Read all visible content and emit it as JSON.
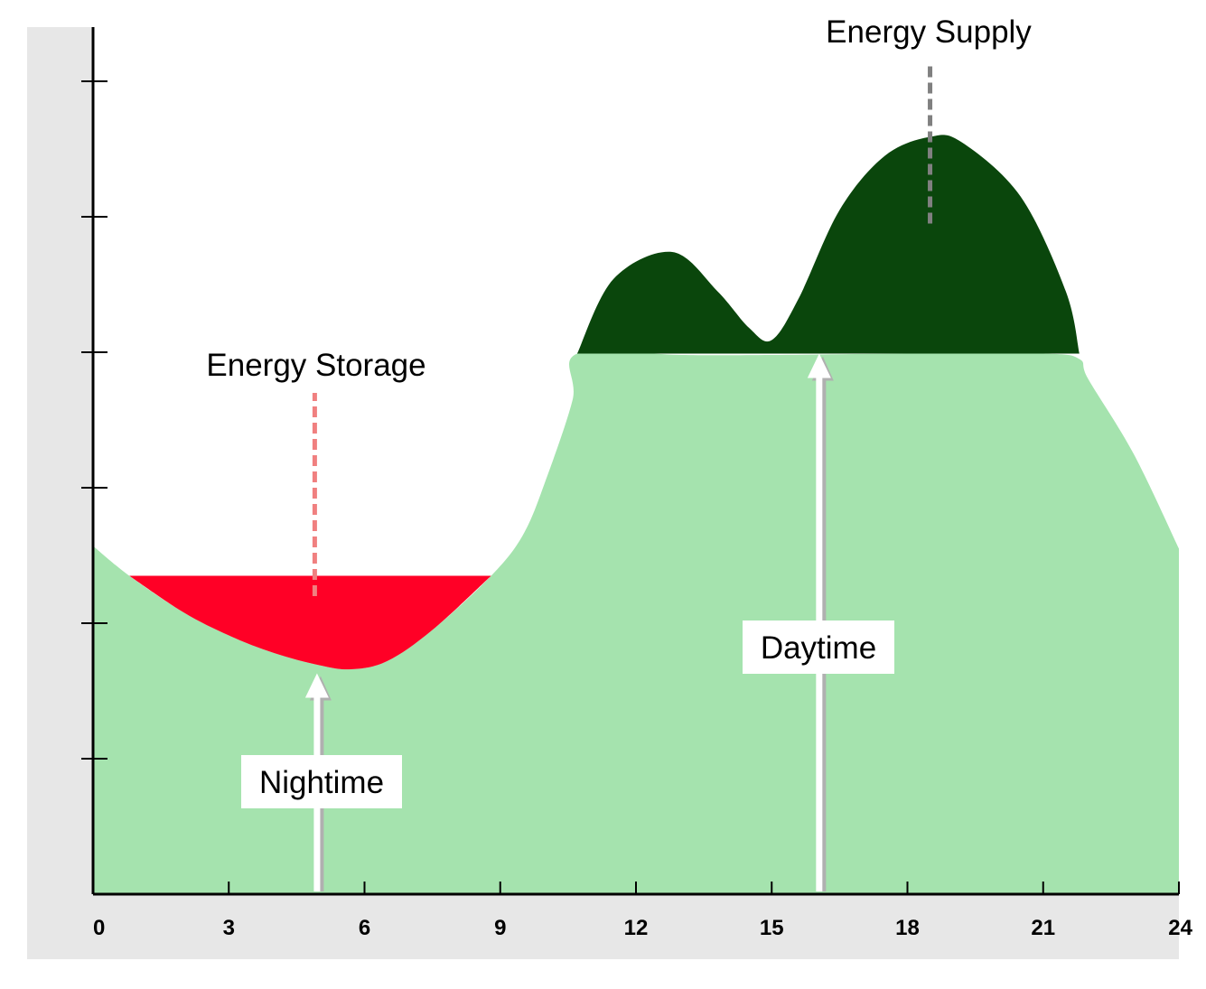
{
  "chart_data": {
    "type": "area",
    "title": "",
    "xlabel": "",
    "ylabel": "",
    "x_ticks": [
      0,
      3,
      6,
      9,
      12,
      15,
      18,
      21,
      24
    ],
    "xlim": [
      0,
      24
    ],
    "y_tick_count": 6,
    "y_tick_labels": [],
    "ylim": [
      0,
      6.4
    ],
    "grid": false,
    "series": [
      {
        "color": "#a5e3ae",
        "x": [
          0,
          0.8,
          2,
          3,
          4,
          5,
          5.7,
          6.5,
          7.5,
          8.8,
          9.5,
          10,
          10.6,
          10.7,
          13,
          15,
          18,
          21,
          21.8,
          22,
          23,
          24
        ],
        "y": [
          2.57,
          2.35,
          2.08,
          1.91,
          1.78,
          1.69,
          1.66,
          1.72,
          1.95,
          2.35,
          2.65,
          3.05,
          3.65,
          3.99,
          3.98,
          3.98,
          3.99,
          3.99,
          3.95,
          3.8,
          3.25,
          2.55
        ]
      },
      {
        "name": "Energy Supply",
        "color": "#0a460c",
        "x": [
          10.7,
          11.5,
          12.8,
          13.8,
          14.5,
          15,
          15.6,
          16.5,
          17.5,
          18.5,
          19.2,
          20.5,
          21.5,
          21.8
        ],
        "y": [
          3.99,
          4.54,
          4.74,
          4.45,
          4.18,
          4.09,
          4.4,
          5.05,
          5.45,
          5.59,
          5.55,
          5.15,
          4.45,
          3.99
        ]
      },
      {
        "name": "Energy Storage",
        "color": "#ff0026",
        "x": [
          0.8,
          2,
          3,
          4,
          5,
          5.7,
          6.5,
          7.5,
          8.8
        ],
        "y_bottom": [
          2.35,
          2.08,
          1.91,
          1.78,
          1.69,
          1.66,
          1.72,
          1.95,
          2.35
        ],
        "y_top": 2.35
      }
    ],
    "annotations": {
      "energy_storage": "Energy Storage",
      "energy_supply": "Energy Supply",
      "daytime": "Daytime",
      "nightime": "Nightime"
    },
    "annotation_points": {
      "energy_supply_line": {
        "x": 18.5,
        "y_from": 4.95,
        "y_to": 6.15
      },
      "energy_storage_line": {
        "x": 4.9,
        "y_from": 2.2,
        "y_to": 3.7
      },
      "daytime_arrow": {
        "x": 16.05,
        "y_from": 0,
        "y_to": 3.99
      },
      "nightime_arrow": {
        "x": 4.95,
        "y_from": 0,
        "y_to": 1.63
      }
    }
  }
}
